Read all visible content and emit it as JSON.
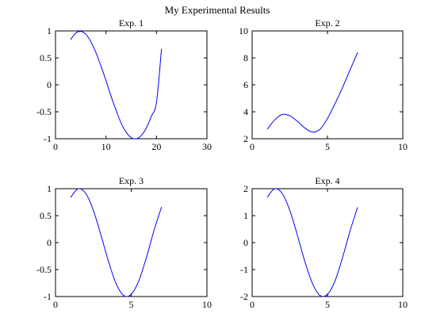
{
  "title": "My Experimental Results",
  "line_color": "#0000ff",
  "chart_data": [
    {
      "type": "line",
      "title": "Exp. 1",
      "xlim": [
        0,
        30
      ],
      "ylim": [
        -1,
        1
      ],
      "xticks": [
        0,
        10,
        20,
        30
      ],
      "xtick_labels": [
        "0",
        "10",
        "20",
        "30"
      ],
      "yticks": [
        -1,
        -0.5,
        0,
        0.5,
        1
      ],
      "ytick_labels": [
        "-1",
        "-0.5",
        "0",
        "0.5",
        "1"
      ],
      "series": [
        {
          "x": [
            3,
            4,
            5,
            6,
            7,
            8,
            9,
            10,
            11,
            12,
            13,
            14,
            15,
            16,
            17,
            18,
            19,
            20,
            21
          ],
          "y": [
            0.84,
            0.96,
            0.99,
            0.94,
            0.8,
            0.6,
            0.35,
            0.08,
            -0.21,
            -0.47,
            -0.71,
            -0.88,
            -0.98,
            -1.0,
            -0.94,
            -0.8,
            -0.58,
            -0.33,
            0.67
          ]
        }
      ]
    },
    {
      "type": "line",
      "title": "Exp. 2",
      "xlim": [
        0,
        10
      ],
      "ylim": [
        2,
        10
      ],
      "xticks": [
        0,
        5,
        10
      ],
      "xtick_labels": [
        "0",
        "5",
        "10"
      ],
      "yticks": [
        2,
        4,
        6,
        8,
        10
      ],
      "ytick_labels": [
        "2",
        "4",
        "6",
        "8",
        "10"
      ],
      "series": [
        {
          "x": [
            1,
            1.5,
            2,
            2.5,
            3,
            3.5,
            4,
            4.5,
            5,
            5.5,
            6,
            6.5,
            7
          ],
          "y": [
            2.7,
            3.4,
            3.8,
            3.7,
            3.3,
            2.8,
            2.5,
            2.7,
            3.5,
            4.6,
            5.8,
            7.1,
            8.4
          ]
        }
      ]
    },
    {
      "type": "line",
      "title": "Exp. 3",
      "xlim": [
        0,
        10
      ],
      "ylim": [
        -1,
        1
      ],
      "xticks": [
        0,
        5,
        10
      ],
      "xtick_labels": [
        "0",
        "5",
        "10"
      ],
      "yticks": [
        -1,
        -0.5,
        0,
        0.5,
        1
      ],
      "ytick_labels": [
        "-1",
        "-0.5",
        "0",
        "0.5",
        "1"
      ],
      "series": [
        {
          "x": [
            1,
            1.5,
            2,
            2.5,
            3,
            3.5,
            4,
            4.5,
            5,
            5.5,
            6,
            6.5,
            7
          ],
          "y": [
            0.84,
            1.0,
            0.91,
            0.6,
            0.14,
            -0.35,
            -0.76,
            -0.98,
            -0.96,
            -0.71,
            -0.28,
            0.22,
            0.66
          ]
        }
      ]
    },
    {
      "type": "line",
      "title": "Exp. 4",
      "xlim": [
        0,
        10
      ],
      "ylim": [
        -2,
        2
      ],
      "xticks": [
        0,
        5,
        10
      ],
      "xtick_labels": [
        "0",
        "5",
        "10"
      ],
      "yticks": [
        -2,
        -1,
        0,
        1,
        2
      ],
      "ytick_labels": [
        "-2",
        "-1",
        "0",
        "1",
        "2"
      ],
      "series": [
        {
          "x": [
            1,
            1.5,
            2,
            2.5,
            3,
            3.5,
            4,
            4.5,
            5,
            5.5,
            6,
            6.5,
            7
          ],
          "y": [
            1.68,
            2.0,
            1.82,
            1.2,
            0.28,
            -0.7,
            -1.51,
            -1.96,
            -1.92,
            -1.42,
            -0.56,
            0.43,
            1.31
          ]
        }
      ]
    }
  ]
}
